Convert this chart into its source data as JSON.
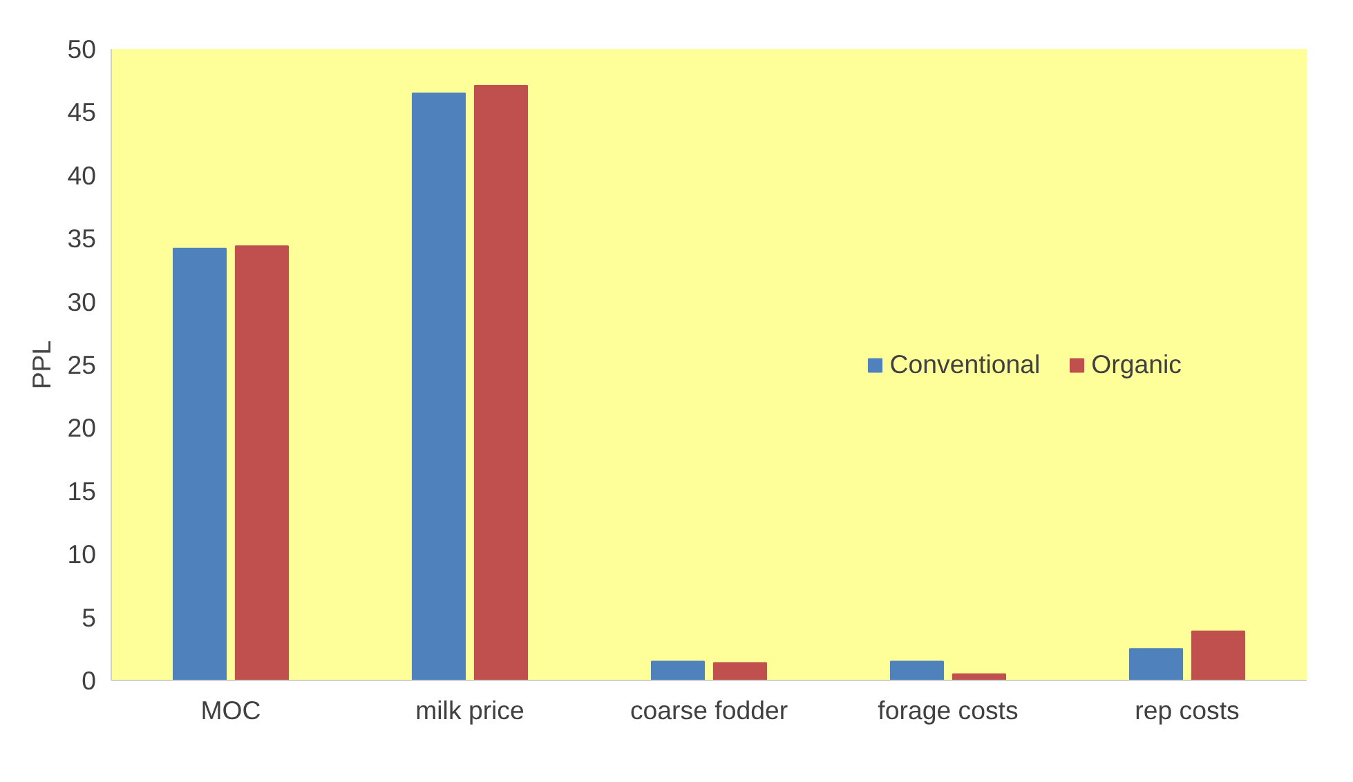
{
  "chart_data": {
    "type": "bar",
    "ylabel": "PPL",
    "categories": [
      "MOC",
      "milk price",
      "coarse fodder",
      "forage costs",
      "rep costs"
    ],
    "series": [
      {
        "name": "Conventional",
        "color": "#4f81bd",
        "values": [
          34.2,
          46.5,
          1.5,
          1.5,
          2.5
        ]
      },
      {
        "name": "Organic",
        "color": "#c0504d",
        "values": [
          34.4,
          47.1,
          1.4,
          0.5,
          3.9
        ]
      }
    ],
    "ylim": [
      0,
      50
    ],
    "yticks": [
      0,
      5,
      10,
      15,
      20,
      25,
      30,
      35,
      40,
      45,
      50
    ],
    "grid": false,
    "legend": "right"
  }
}
